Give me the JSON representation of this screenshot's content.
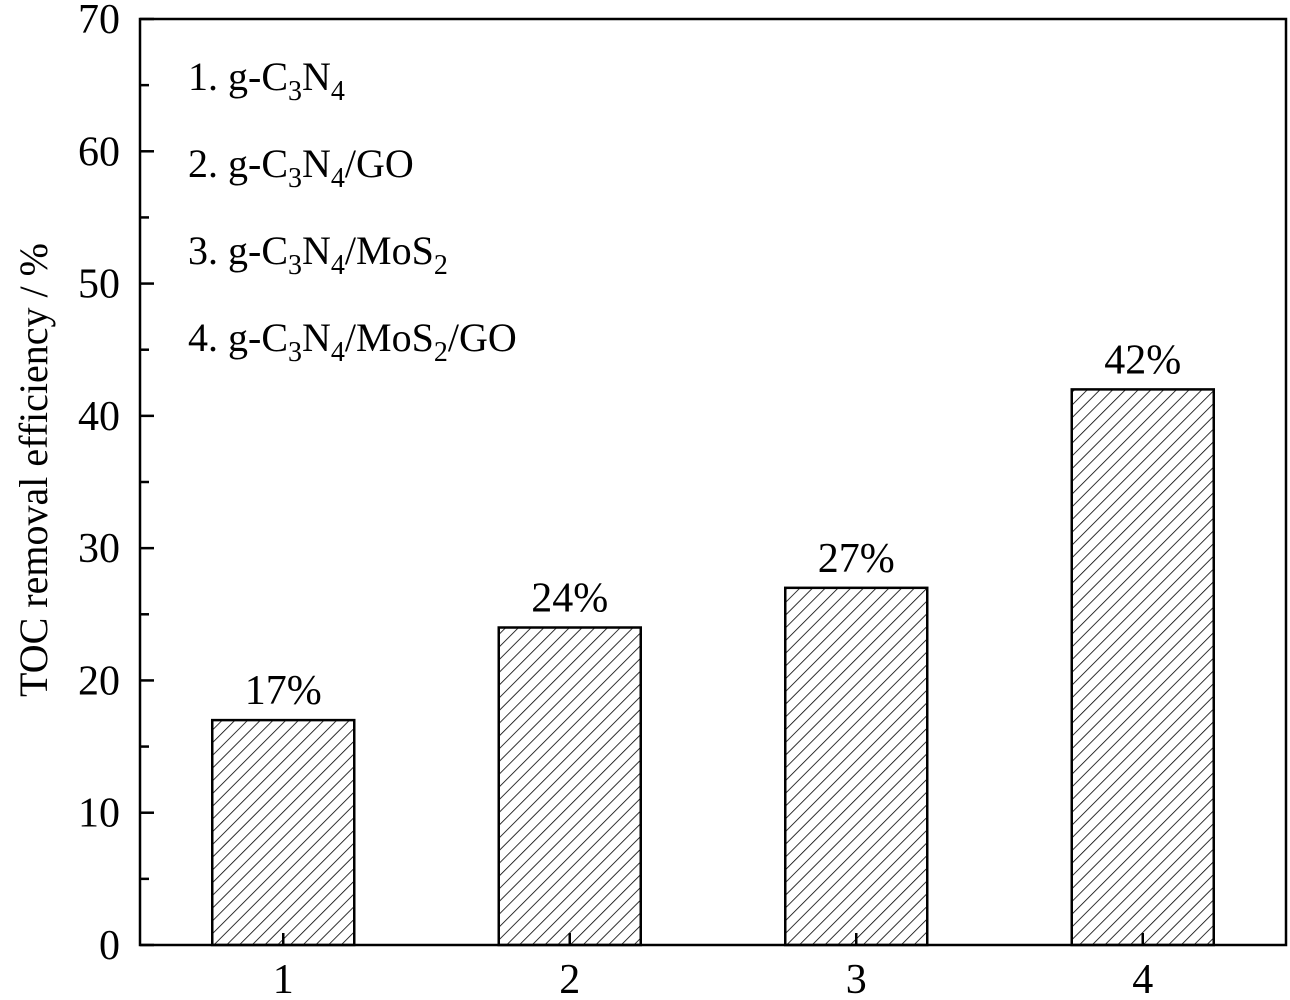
{
  "chart_data": {
    "type": "bar",
    "categories": [
      "1",
      "2",
      "3",
      "4"
    ],
    "values": [
      17,
      24,
      27,
      42
    ],
    "value_labels": [
      "17%",
      "24%",
      "27%",
      "42%"
    ],
    "title": "",
    "xlabel": "",
    "ylabel": "TOC removal efficiency / %",
    "ylim": [
      0,
      70
    ],
    "yticks": [
      0,
      10,
      20,
      30,
      40,
      50,
      60,
      70
    ],
    "grid": false,
    "bar_fill": "hatched",
    "bar_color": "#000000",
    "legend_position": "top-left",
    "legend": [
      {
        "index": "1.",
        "parts": [
          [
            "g-C",
            "n"
          ],
          [
            "3",
            "sub"
          ],
          [
            "N",
            "n"
          ],
          [
            "4",
            "sub"
          ]
        ]
      },
      {
        "index": "2.",
        "parts": [
          [
            "g-C",
            "n"
          ],
          [
            "3",
            "sub"
          ],
          [
            "N",
            "n"
          ],
          [
            "4",
            "sub"
          ],
          [
            "/GO",
            "n"
          ]
        ]
      },
      {
        "index": "3.",
        "parts": [
          [
            "g-C",
            "n"
          ],
          [
            "3",
            "sub"
          ],
          [
            "N",
            "n"
          ],
          [
            "4",
            "sub"
          ],
          [
            "/MoS",
            "n"
          ],
          [
            "2",
            "sub"
          ]
        ]
      },
      {
        "index": "4.",
        "parts": [
          [
            "g-C",
            "n"
          ],
          [
            "3",
            "sub"
          ],
          [
            "N",
            "n"
          ],
          [
            "4",
            "sub"
          ],
          [
            "/MoS",
            "n"
          ],
          [
            "2",
            "sub"
          ],
          [
            "/GO",
            "n"
          ]
        ]
      }
    ]
  }
}
